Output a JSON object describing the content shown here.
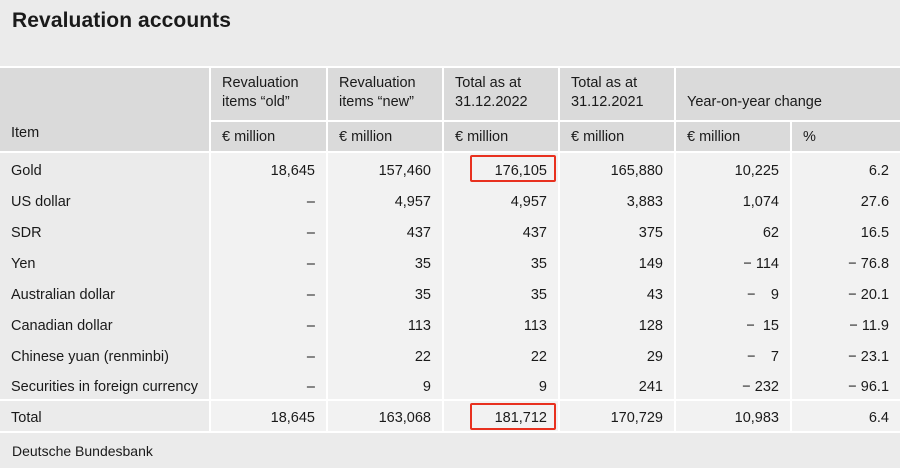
{
  "title": "Revaluation accounts",
  "columns": {
    "item": "Item",
    "old_l1": "Revaluation",
    "old_l2": "items “old”",
    "new_l1": "Revaluation",
    "new_l2": "items “new”",
    "t2022_l1": "Total as at",
    "t2022_l2": "31.12.2022",
    "t2021_l1": "Total as at",
    "t2021_l2": "31.12.2021",
    "yoy": "Year-on-year change"
  },
  "units": [
    "€ million",
    "€ million",
    "€ million",
    "€ million",
    "€ million",
    "%"
  ],
  "rows": [
    {
      "item": "Gold",
      "old": "18,645",
      "new": "157,460",
      "t2022": "176,105",
      "t2021": "165,880",
      "chg": "10,225",
      "pct": "6.2",
      "highlight": true
    },
    {
      "item": "US dollar",
      "old": "–",
      "new": "4,957",
      "t2022": "4,957",
      "t2021": "3,883",
      "chg": "1,074",
      "pct": "27.6"
    },
    {
      "item": "SDR",
      "old": "–",
      "new": "437",
      "t2022": "437",
      "t2021": "375",
      "chg": "62",
      "pct": "16.5"
    },
    {
      "item": "Yen",
      "old": "–",
      "new": "35",
      "t2022": "35",
      "t2021": "149",
      "chg": "− 114",
      "pct": "− 76.8"
    },
    {
      "item": "Australian dollar",
      "old": "–",
      "new": "35",
      "t2022": "35",
      "t2021": "43",
      "chg": "−   9",
      "pct": "− 20.1"
    },
    {
      "item": "Canadian dollar",
      "old": "–",
      "new": "113",
      "t2022": "113",
      "t2021": "128",
      "chg": "−  15",
      "pct": "− 11.9"
    },
    {
      "item": "Chinese yuan (renminbi)",
      "old": "–",
      "new": "22",
      "t2022": "22",
      "t2021": "29",
      "chg": "−   7",
      "pct": "− 23.1"
    },
    {
      "item": "Securities in foreign currency",
      "old": "–",
      "new": "9",
      "t2022": "9",
      "t2021": "241",
      "chg": "− 232",
      "pct": "− 96.1"
    }
  ],
  "total": {
    "item": "Total",
    "old": "18,645",
    "new": "163,068",
    "t2022": "181,712",
    "t2021": "170,729",
    "chg": "10,983",
    "pct": "6.4"
  },
  "source": "Deutsche Bundesbank",
  "highlight_color": "#e8311f"
}
